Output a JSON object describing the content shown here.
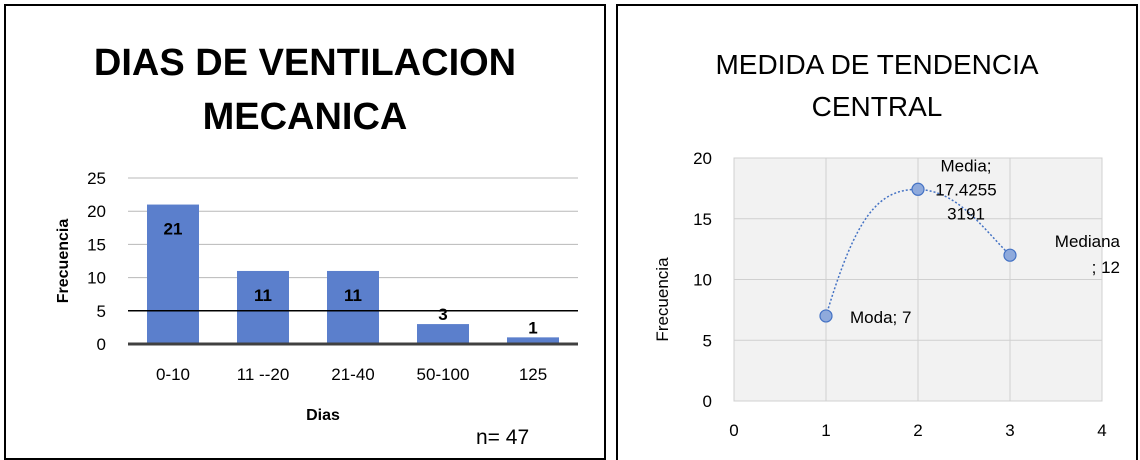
{
  "left_chart": {
    "title_line1": "DIAS DE VENTILACION",
    "title_line2": "MECANICA",
    "n_label": "n= 47"
  },
  "right_chart": {
    "title_line1": "MEDIDA DE TENDENCIA",
    "title_line2": "CENTRAL"
  },
  "chart_data": [
    {
      "type": "bar",
      "title": "DIAS DE VENTILACION MECANICA",
      "categories": [
        "0-10",
        "11 --20",
        "21-40",
        "50-100",
        "125"
      ],
      "values": [
        21,
        11,
        11,
        3,
        1
      ],
      "data_labels": [
        "21",
        "11",
        "11",
        "3",
        "1"
      ],
      "xlabel": "Dias",
      "ylabel": "Frecuencia",
      "ylim": [
        0,
        25
      ],
      "yticks": [
        0,
        5,
        10,
        15,
        20,
        25
      ],
      "annotation": "n= 47",
      "bar_color": "#5b7fcc",
      "grid": true
    },
    {
      "type": "scatter",
      "title": "MEDIDA DE TENDENCIA CENTRAL",
      "x": [
        1,
        2,
        3
      ],
      "y": [
        7,
        17.42553191,
        12
      ],
      "point_labels": [
        "Moda; 7",
        "Media; 17.42553191",
        "Mediana; 12"
      ],
      "smoothed_dotted_line": true,
      "ylabel": "Frecuencia",
      "xlim": [
        0,
        4
      ],
      "ylim": [
        0,
        20
      ],
      "xticks": [
        0,
        1,
        2,
        3,
        4
      ],
      "yticks": [
        0,
        5,
        10,
        15,
        20
      ],
      "point_color": "#8faadc",
      "line_color": "#4472c4",
      "grid": true
    }
  ]
}
